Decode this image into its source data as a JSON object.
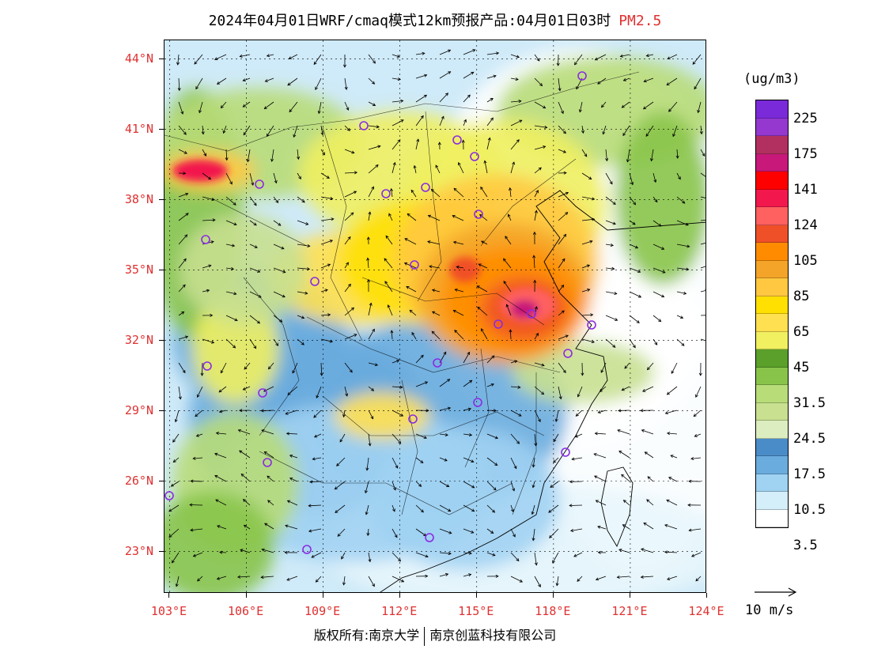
{
  "title": {
    "main": "2024年04月01日WRF/cmaq模式12km预报产品:04月01日03时",
    "variable": "PM2.5"
  },
  "axes": {
    "lat_labels": [
      "44°N",
      "41°N",
      "38°N",
      "35°N",
      "32°N",
      "29°N",
      "26°N",
      "23°N"
    ],
    "lat_values": [
      44,
      41,
      38,
      35,
      32,
      29,
      26,
      23
    ],
    "lon_labels": [
      "103°E",
      "106°E",
      "109°E",
      "112°E",
      "115°E",
      "118°E",
      "121°E",
      "124°E"
    ],
    "lon_values": [
      103,
      106,
      109,
      112,
      115,
      118,
      121,
      124
    ],
    "lat_range": [
      21.2,
      44.8
    ],
    "lon_range": [
      102.8,
      124.0
    ]
  },
  "colorbar": {
    "unit": "(ug/m3)",
    "colors": [
      "#7a2ad8",
      "#9438d0",
      "#b23060",
      "#c8187a",
      "#ff0000",
      "#f2184e",
      "#ff6060",
      "#f05028",
      "#ff8c00",
      "#f4a428",
      "#ffc840",
      "#ffe000",
      "#ffe050",
      "#f0f060",
      "#5aa02a",
      "#88c44a",
      "#b8dc78",
      "#c8e090",
      "#dceec0",
      "#4a8cc8",
      "#6aacde",
      "#a0d2f2",
      "#d4eefa",
      "#ffffff"
    ],
    "labels": [
      "225",
      "175",
      "141",
      "124",
      "105",
      "85",
      "65",
      "45",
      "31.5",
      "24.5",
      "17.5",
      "10.5",
      "3.5"
    ]
  },
  "wind_reference": {
    "label": "10 m/s"
  },
  "footer": {
    "left": "版权所有:南京大学",
    "right": "南京创蓝科技有限公司"
  }
}
